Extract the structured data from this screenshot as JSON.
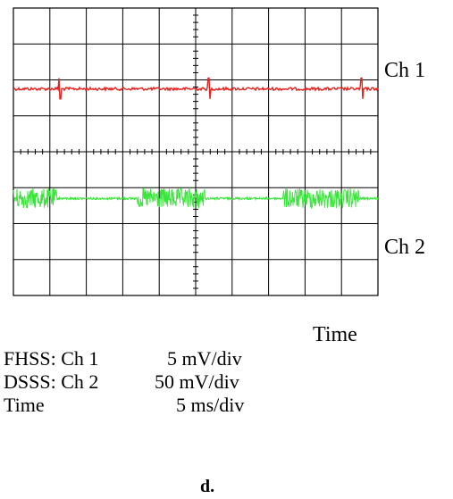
{
  "chart_data": {
    "type": "line",
    "title": "",
    "xlabel": "Time",
    "ylabel": "",
    "grid": true,
    "divisions": {
      "x": 10,
      "y": 8
    },
    "series": [
      {
        "name": "Ch 1",
        "color": "#e8201c",
        "baseline_div": 2.25,
        "noise_div": 0.02,
        "spikes_xdiv": [
          1.25,
          5.35,
          9.55
        ]
      },
      {
        "name": "Ch 2",
        "color": "#39e63a",
        "baseline_div": 5.3,
        "noise_div": 0.02,
        "bursts_xdiv": [
          [
            0.0,
            1.2
          ],
          [
            3.4,
            5.25
          ],
          [
            7.4,
            9.5
          ]
        ],
        "burst_amp_div": 0.28
      }
    ],
    "labels": [
      "Ch 1",
      "Ch 2"
    ]
  },
  "settings": [
    {
      "key": "FHSS: Ch 1",
      "value": "5 mV/div"
    },
    {
      "key": "DSSS: Ch 2",
      "value": "50 mV/div"
    },
    {
      "key": "Time",
      "value": "5 ms/div"
    }
  ],
  "panel_label": "d."
}
